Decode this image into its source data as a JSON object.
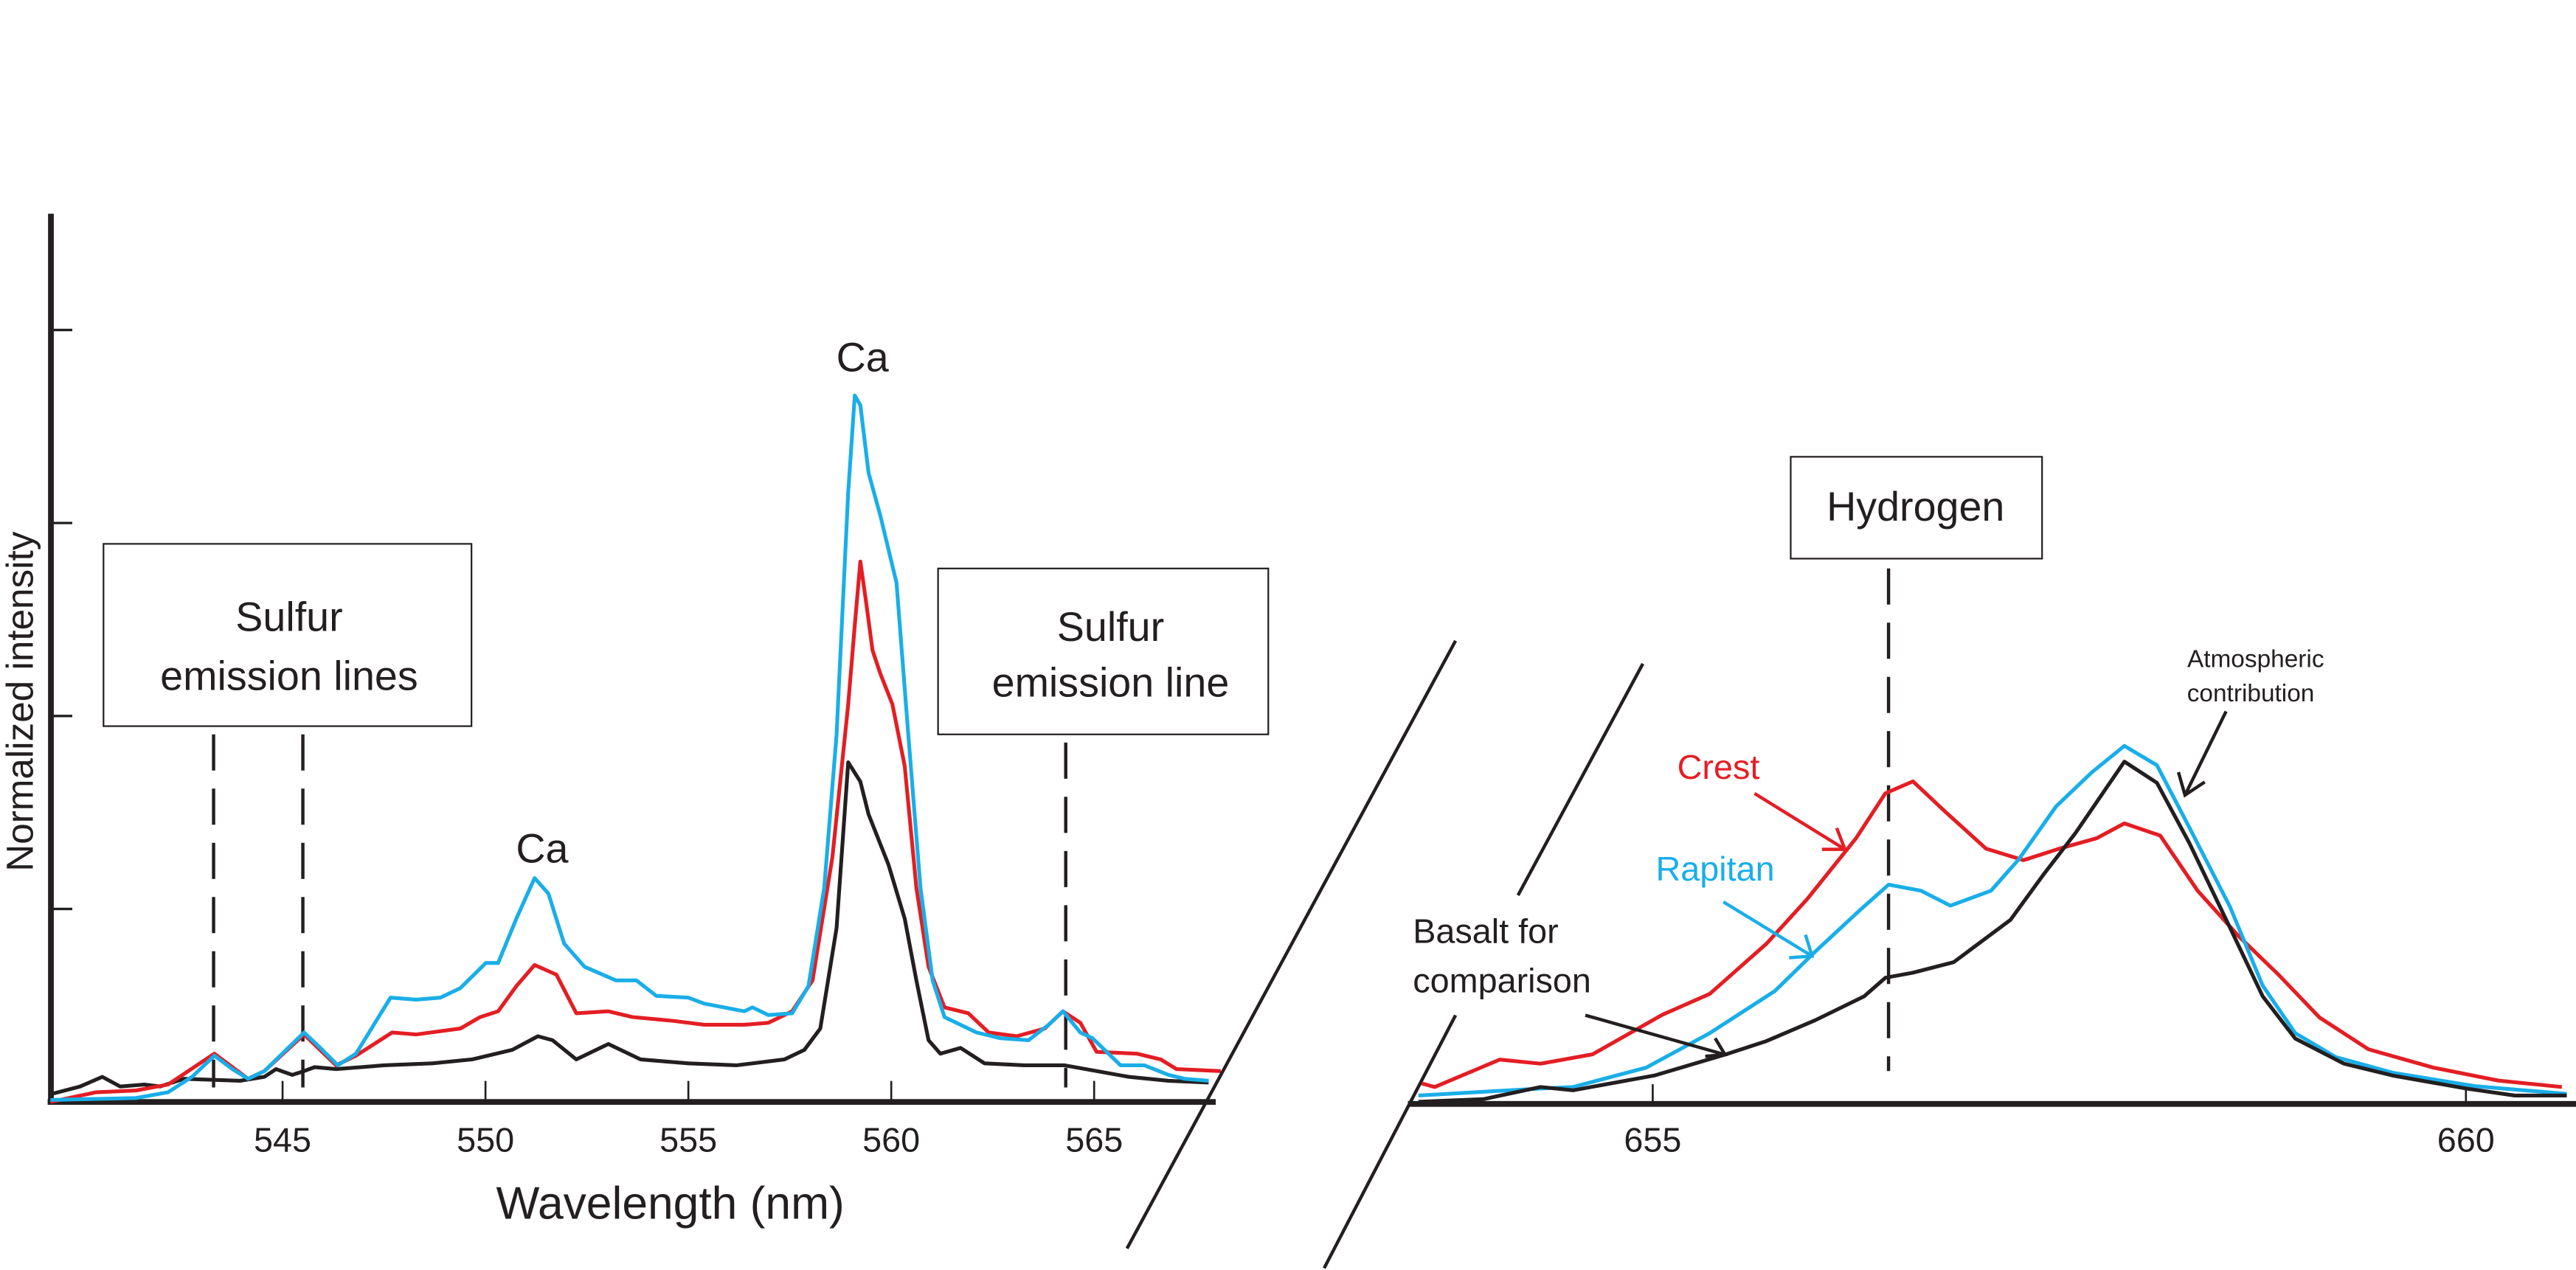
{
  "colors": {
    "crest": "#e31e24",
    "rapitan": "#1aaee8",
    "basalt": "#231f20"
  },
  "chart_data": [
    {
      "type": "line",
      "title": "",
      "xlabel": "Wavelength (nm)",
      "ylabel": "Normalized intensity",
      "xlim": [
        539.3,
        567.7
      ],
      "ylim": [
        0,
        4.57
      ],
      "x_ticks": [
        "545",
        "550",
        "555",
        "560",
        "565"
      ],
      "y_ticks_unlabeled": [
        1,
        2,
        3,
        4
      ],
      "grid": false,
      "annotations": {
        "sulfur_left": [
          "Sulfur",
          "emission lines"
        ],
        "sulfur_right": [
          "Sulfur",
          "emission line"
        ],
        "ca_small": "Ca",
        "ca_large": "Ca",
        "sulfur_line_positions_nm": [
          543.3,
          545.5,
          564.3
        ]
      },
      "series": [
        {
          "key": "basalt",
          "x": [
            539.28,
            540.01,
            540.56,
            541.0,
            541.59,
            541.98,
            542.57,
            543.95,
            544.55,
            544.84,
            545.24,
            545.53,
            545.79,
            546.32,
            547.5,
            548.69,
            549.67,
            550.66,
            551.29,
            551.65,
            552.24,
            553.03,
            553.82,
            555.0,
            556.18,
            557.37,
            557.86,
            558.25,
            558.65,
            558.94,
            559.24,
            559.44,
            559.93,
            560.33,
            560.62,
            560.92,
            561.21,
            561.71,
            562.3,
            563.28,
            564.27,
            565.06,
            565.85,
            566.83,
            567.82
          ],
          "y": [
            0.04,
            0.08,
            0.13,
            0.08,
            0.09,
            0.08,
            0.12,
            0.11,
            0.13,
            0.17,
            0.14,
            0.16,
            0.18,
            0.17,
            0.19,
            0.2,
            0.22,
            0.27,
            0.34,
            0.32,
            0.22,
            0.3,
            0.22,
            0.2,
            0.19,
            0.22,
            0.27,
            0.38,
            0.9,
            1.76,
            1.66,
            1.49,
            1.23,
            0.95,
            0.63,
            0.32,
            0.25,
            0.28,
            0.2,
            0.19,
            0.19,
            0.16,
            0.13,
            0.11,
            0.1
          ]
        },
        {
          "key": "crest",
          "x": [
            539.28,
            540.4,
            541.39,
            542.18,
            543.32,
            544.15,
            544.55,
            545.53,
            546.32,
            546.81,
            547.7,
            548.29,
            549.38,
            549.87,
            550.31,
            550.76,
            551.21,
            551.75,
            552.24,
            553.03,
            553.62,
            554.61,
            555.39,
            556.38,
            556.97,
            557.56,
            558.06,
            558.55,
            558.94,
            559.1,
            559.24,
            559.38,
            559.54,
            559.73,
            560.03,
            560.33,
            560.62,
            560.92,
            561.31,
            561.9,
            562.4,
            563.09,
            563.78,
            564.23,
            564.66,
            565.06,
            566.05,
            566.64,
            567.03,
            568.12
          ],
          "y": [
            0,
            0.05,
            0.06,
            0.09,
            0.25,
            0.12,
            0.16,
            0.35,
            0.19,
            0.24,
            0.36,
            0.35,
            0.38,
            0.44,
            0.47,
            0.6,
            0.71,
            0.66,
            0.46,
            0.47,
            0.44,
            0.42,
            0.4,
            0.4,
            0.41,
            0.47,
            0.63,
            1.27,
            2.06,
            2.47,
            2.8,
            2.59,
            2.34,
            2.22,
            2.06,
            1.74,
            1.11,
            0.7,
            0.49,
            0.46,
            0.36,
            0.34,
            0.38,
            0.47,
            0.41,
            0.26,
            0.25,
            0.22,
            0.17,
            0.16
          ]
        },
        {
          "key": "rapitan",
          "x": [
            539.28,
            541.39,
            542.18,
            542.77,
            543.32,
            543.76,
            544.15,
            544.55,
            545.53,
            545.93,
            546.36,
            546.81,
            547.66,
            548.29,
            548.89,
            549.38,
            550.01,
            550.31,
            550.76,
            551.21,
            551.55,
            551.94,
            552.44,
            553.22,
            553.72,
            554.21,
            555.0,
            555.39,
            556.38,
            556.58,
            556.97,
            557.56,
            557.96,
            558.35,
            558.65,
            558.94,
            559.1,
            559.24,
            559.44,
            559.73,
            560.13,
            560.42,
            560.72,
            561.02,
            561.31,
            562.1,
            562.69,
            563.38,
            563.88,
            564.23,
            564.66,
            564.96,
            565.65,
            566.24,
            566.83,
            567.23,
            567.82
          ],
          "y": [
            0.01,
            0.02,
            0.05,
            0.13,
            0.24,
            0.17,
            0.12,
            0.16,
            0.36,
            0.28,
            0.19,
            0.25,
            0.54,
            0.53,
            0.54,
            0.59,
            0.72,
            0.72,
            0.95,
            1.16,
            1.08,
            0.82,
            0.7,
            0.63,
            0.63,
            0.55,
            0.54,
            0.51,
            0.47,
            0.49,
            0.45,
            0.46,
            0.6,
            1.11,
            1.9,
            3.16,
            3.66,
            3.61,
            3.26,
            3.04,
            2.69,
            1.9,
            1.11,
            0.63,
            0.44,
            0.36,
            0.33,
            0.32,
            0.4,
            0.47,
            0.36,
            0.33,
            0.19,
            0.19,
            0.14,
            0.12,
            0.11
          ]
        }
      ]
    },
    {
      "type": "line",
      "title": "",
      "xlabel": "",
      "ylabel": "",
      "xlim": [
        653.5,
        660.6
      ],
      "x_ticks": [
        "655",
        "660"
      ],
      "grid": false,
      "annotations": {
        "hydrogen": "Hydrogen",
        "hydrogen_line_nm": 656.45,
        "atmospheric": [
          "Atmospheric",
          "contribution"
        ]
      },
      "series": [
        {
          "key": "crest",
          "name": "Crest",
          "x": [
            653.58,
            653.66,
            654.06,
            654.31,
            654.63,
            655.06,
            655.35,
            655.7,
            655.95,
            656.25,
            656.43,
            656.6,
            656.8,
            657.05,
            657.28,
            657.5,
            657.73,
            657.9,
            658.12,
            658.35,
            658.6,
            658.85,
            659.1,
            659.4,
            659.8,
            660.2,
            660.59
          ],
          "y": [
            0.107,
            0.088,
            0.231,
            0.209,
            0.258,
            0.464,
            0.573,
            0.834,
            1.067,
            1.383,
            1.616,
            1.679,
            1.52,
            1.328,
            1.268,
            1.328,
            1.383,
            1.46,
            1.397,
            1.109,
            0.875,
            0.67,
            0.45,
            0.285,
            0.189,
            0.121,
            0.088
          ]
        },
        {
          "key": "rapitan",
          "name": "Rapitan",
          "x": [
            653.56,
            654.31,
            654.51,
            654.96,
            655.35,
            655.75,
            656.0,
            656.28,
            656.45,
            656.65,
            656.83,
            657.08,
            657.25,
            657.48,
            657.7,
            657.9,
            658.1,
            658.3,
            658.55,
            658.75,
            658.95,
            659.2,
            659.55,
            660.05,
            660.62
          ],
          "y": [
            0.044,
            0.08,
            0.088,
            0.189,
            0.368,
            0.587,
            0.793,
            1.013,
            1.141,
            1.109,
            1.032,
            1.109,
            1.273,
            1.548,
            1.726,
            1.863,
            1.762,
            1.438,
            1.026,
            0.615,
            0.368,
            0.244,
            0.162,
            0.093,
            0.052
          ]
        },
        {
          "key": "basalt",
          "name": "Basalt for comparison",
          "x": [
            653.56,
            653.96,
            654.31,
            654.51,
            655.01,
            655.45,
            655.7,
            656.0,
            656.3,
            656.43,
            656.6,
            656.85,
            657.2,
            657.4,
            657.6,
            657.9,
            658.1,
            658.3,
            658.55,
            658.75,
            658.95,
            659.25,
            659.55,
            660.0,
            660.3,
            660.62
          ],
          "y": [
            0.011,
            0.025,
            0.088,
            0.071,
            0.148,
            0.258,
            0.327,
            0.436,
            0.56,
            0.656,
            0.683,
            0.738,
            0.958,
            1.191,
            1.41,
            1.781,
            1.671,
            1.356,
            0.917,
            0.56,
            0.34,
            0.209,
            0.148,
            0.08,
            0.044,
            0.044
          ]
        }
      ]
    }
  ],
  "labels": {
    "crest": "Crest",
    "rapitan": "Rapitan",
    "basalt": [
      "Basalt for",
      "comparison"
    ]
  }
}
